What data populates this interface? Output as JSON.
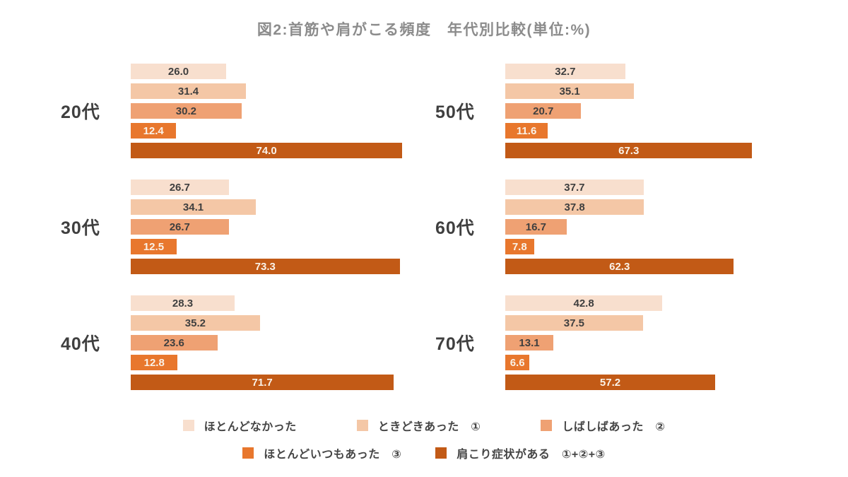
{
  "title": "図2:首筋や肩がこる頻度　年代別比較(単位:%)",
  "chart_data": {
    "type": "bar",
    "orientation": "horizontal",
    "unit": "%",
    "title": "図2:首筋や肩がこる頻度　年代別比較(単位:%)",
    "xlim": [
      0,
      78
    ],
    "grid": false,
    "value_labels": "centered-on-bar",
    "legend_position": "bottom",
    "series": [
      {
        "key": "hotondo-nakatta",
        "name": "ほとんどなかった",
        "color": "#F8DFCE",
        "value_text_color": "#3F3F3F"
      },
      {
        "key": "tokidoki-atta",
        "name": "ときどきあった　①",
        "color": "#F4C7A6",
        "value_text_color": "#3F3F3F"
      },
      {
        "key": "shibashiba-atta",
        "name": "しばしばあった　②",
        "color": "#EFA173",
        "value_text_color": "#3F3F3F"
      },
      {
        "key": "hotondo-itsumo-atta",
        "name": "ほとんどいつもあった　③",
        "color": "#E8772D",
        "value_text_color": "#FAF2E8"
      },
      {
        "key": "katakori-shojo-ga-aru",
        "name": "肩こり症状がある　①+②+③",
        "color": "#C25A16",
        "value_text_color": "#FAF2E8"
      }
    ],
    "groups": [
      {
        "key": "20s",
        "label": "20代",
        "values": [
          26.0,
          31.4,
          30.2,
          12.4,
          74.0
        ]
      },
      {
        "key": "30s",
        "label": "30代",
        "values": [
          26.7,
          34.1,
          26.7,
          12.5,
          73.3
        ]
      },
      {
        "key": "40s",
        "label": "40代",
        "values": [
          28.3,
          35.2,
          23.6,
          12.8,
          71.7
        ]
      },
      {
        "key": "50s",
        "label": "50代",
        "values": [
          32.7,
          35.1,
          20.7,
          11.6,
          67.3
        ]
      },
      {
        "key": "60s",
        "label": "60代",
        "values": [
          37.7,
          37.8,
          16.7,
          7.8,
          62.3
        ]
      },
      {
        "key": "70s",
        "label": "70代",
        "values": [
          42.8,
          37.5,
          13.1,
          6.6,
          57.2
        ]
      }
    ],
    "column_assignment": {
      "left": [
        "20s",
        "30s",
        "40s"
      ],
      "right": [
        "50s",
        "60s",
        "70s"
      ]
    },
    "legend_rows": [
      [
        0,
        1,
        2
      ],
      [
        3,
        4
      ]
    ]
  },
  "colors": {
    "background": "#FFFFFF",
    "title_text": "#8C8C8C",
    "age_label_text": "#3F3F3F",
    "legend_text": "#454545"
  }
}
